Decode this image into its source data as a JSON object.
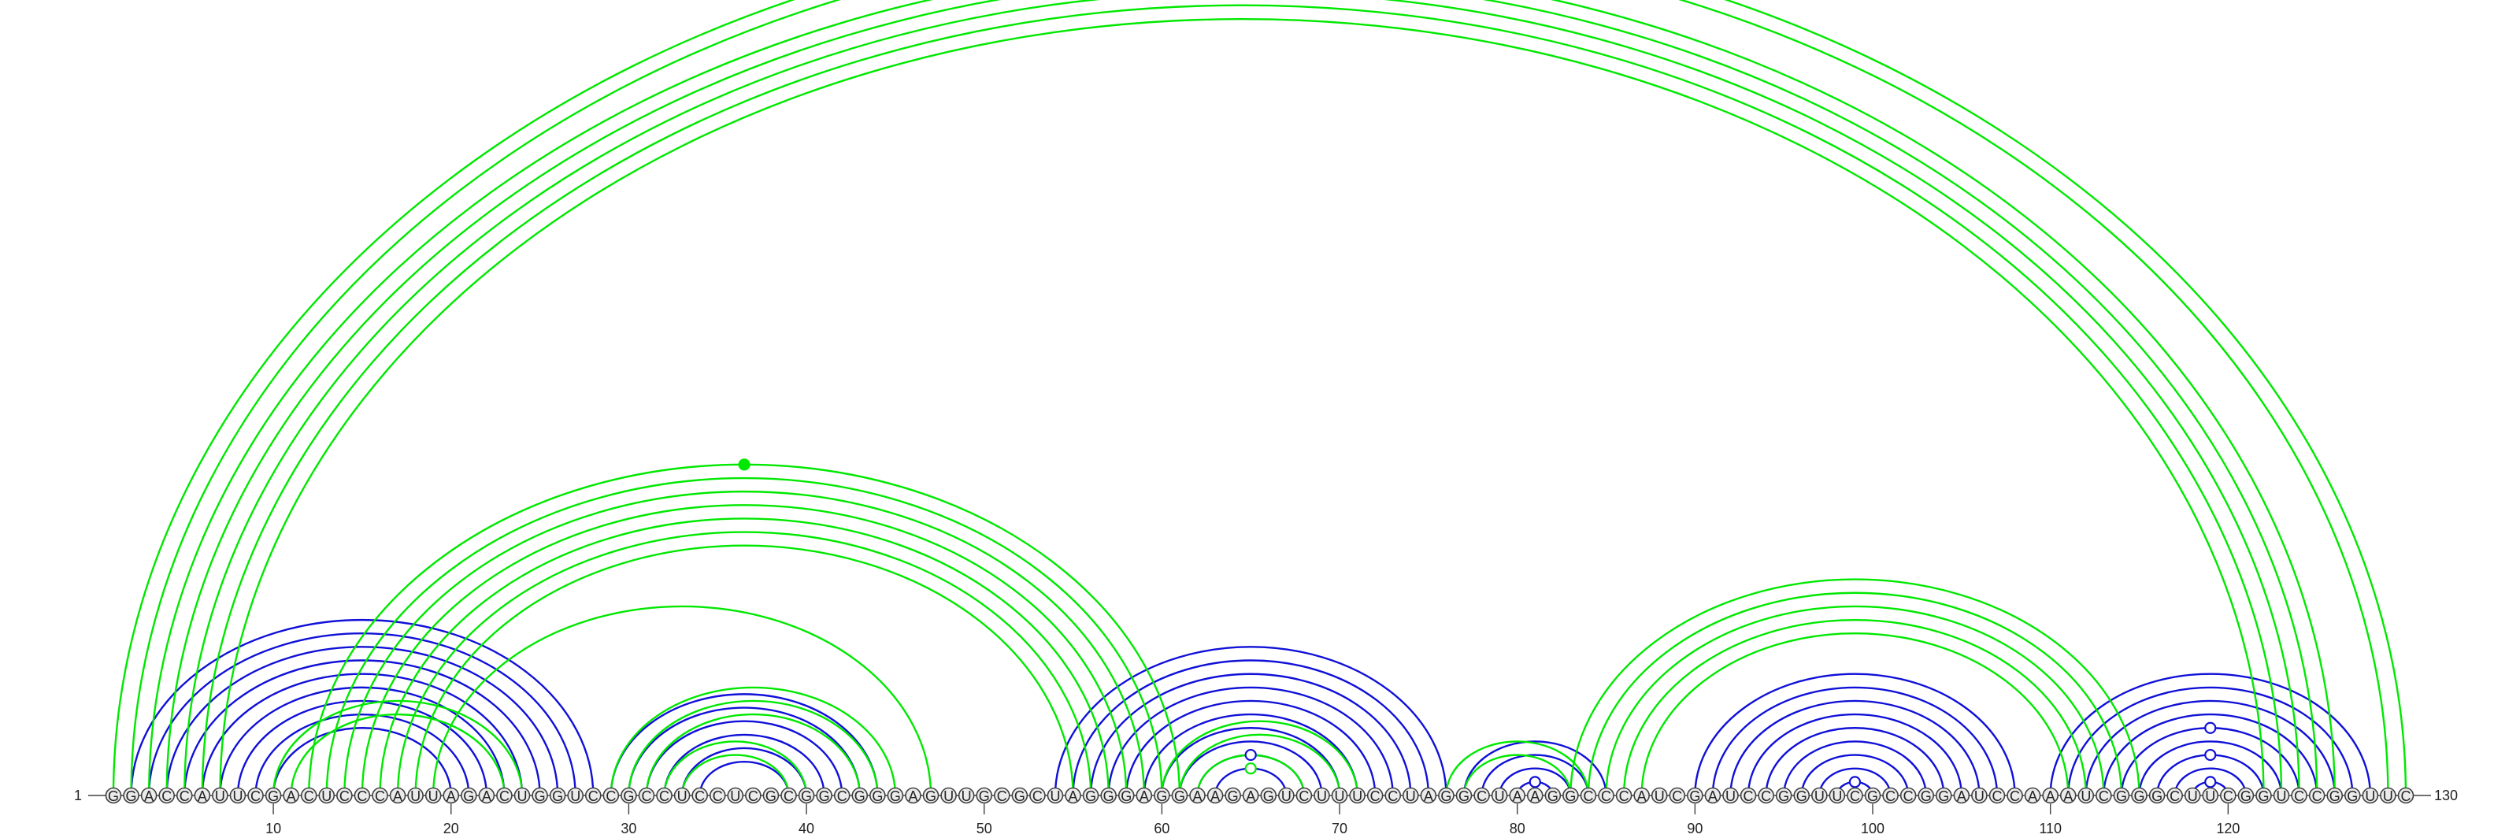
{
  "sequence": "GGACCAUUCGACUCCCAUUAGACUGGUCCGCCUCCUCGCGGCGGGAGUUGCGCUAGGGAGGAAGAGUCUUUCCUAGGCUAAGGCCCAUCGAUCCGGUUCGCCGGAUCCAAAUCGGGCUUCGGUCCGGUUC",
  "start_label": "1",
  "end_label": "130",
  "ticks": [
    "10",
    "20",
    "30",
    "40",
    "50",
    "60",
    "70",
    "80",
    "90",
    "100",
    "110",
    "120"
  ],
  "colors": {
    "blue": "#1010d8",
    "green": "#00e800"
  },
  "arcs": {
    "blue": [
      [
        2,
        28
      ],
      [
        3,
        27
      ],
      [
        4,
        26
      ],
      [
        5,
        25
      ],
      [
        6,
        24
      ],
      [
        7,
        23
      ],
      [
        8,
        22
      ],
      [
        9,
        21
      ],
      [
        10,
        20
      ],
      [
        29,
        44
      ],
      [
        30,
        43
      ],
      [
        31,
        42
      ],
      [
        32,
        41
      ],
      [
        33,
        40
      ],
      [
        34,
        39
      ],
      [
        54,
        76
      ],
      [
        55,
        75
      ],
      [
        56,
        74
      ],
      [
        57,
        73
      ],
      [
        58,
        72
      ],
      [
        59,
        71
      ],
      [
        60,
        70
      ],
      [
        61,
        69
      ],
      [
        62,
        68
      ],
      [
        63,
        67
      ],
      [
        77,
        85
      ],
      [
        78,
        84
      ],
      [
        79,
        83
      ],
      [
        80,
        82
      ],
      [
        90,
        108
      ],
      [
        91,
        107
      ],
      [
        92,
        106
      ],
      [
        93,
        105
      ],
      [
        94,
        104
      ],
      [
        95,
        103
      ],
      [
        96,
        102
      ],
      [
        97,
        101
      ],
      [
        98,
        100
      ],
      [
        110,
        128
      ],
      [
        111,
        127
      ],
      [
        112,
        126
      ],
      [
        113,
        125
      ],
      [
        114,
        124
      ],
      [
        115,
        123
      ],
      [
        116,
        122
      ],
      [
        117,
        121
      ],
      [
        118,
        120
      ]
    ],
    "green": [
      [
        1,
        130
      ],
      [
        2,
        129
      ],
      [
        3,
        126
      ],
      [
        4,
        125
      ],
      [
        5,
        124
      ],
      [
        6,
        123
      ],
      [
        7,
        122
      ],
      [
        12,
        61
      ],
      [
        13,
        60
      ],
      [
        14,
        59
      ],
      [
        15,
        58
      ],
      [
        16,
        57
      ],
      [
        17,
        56
      ],
      [
        18,
        55
      ],
      [
        19,
        47
      ],
      [
        29,
        45
      ],
      [
        30,
        44
      ],
      [
        31,
        43
      ],
      [
        32,
        40
      ],
      [
        33,
        39
      ],
      [
        62,
        68
      ],
      [
        61,
        70
      ],
      [
        60,
        71
      ],
      [
        76,
        84
      ],
      [
        77,
        83
      ],
      [
        83,
        115
      ],
      [
        84,
        114
      ],
      [
        85,
        113
      ],
      [
        86,
        112
      ],
      [
        87,
        111
      ],
      [
        10,
        24
      ],
      [
        11,
        23
      ]
    ]
  },
  "markers": [
    {
      "color": "green",
      "hollow": true,
      "pair": [
        1,
        130
      ]
    },
    {
      "color": "green",
      "hollow": false,
      "pair": [
        12,
        61
      ]
    },
    {
      "color": "blue",
      "hollow": true,
      "pair": [
        62,
        68
      ]
    },
    {
      "color": "green",
      "hollow": true,
      "pair": [
        63,
        67
      ]
    },
    {
      "color": "blue",
      "hollow": true,
      "pair": [
        80,
        82
      ]
    },
    {
      "color": "blue",
      "hollow": true,
      "pair": [
        114,
        124
      ]
    },
    {
      "color": "blue",
      "hollow": true,
      "pair": [
        116,
        122
      ]
    },
    {
      "color": "blue",
      "hollow": true,
      "pair": [
        118,
        120
      ]
    },
    {
      "color": "blue",
      "hollow": true,
      "pair": [
        98,
        100
      ]
    }
  ]
}
